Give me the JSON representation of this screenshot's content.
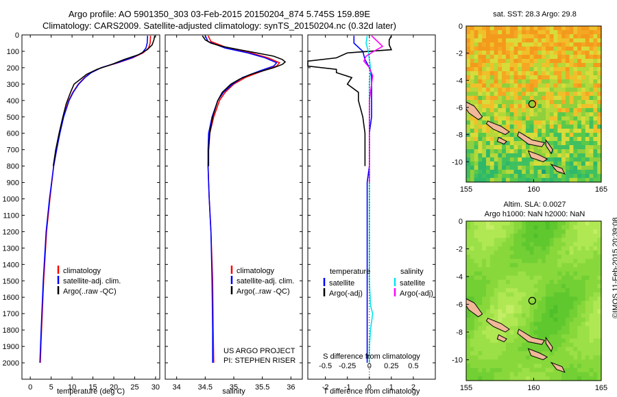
{
  "header": {
    "line1": "Argo profile: AO 5901350_303 03-Feb-2015 20150204_874 5.745S 159.89E",
    "line2": "Climatology: CARS2009. Satellite-adjusted climatology: synTS_20150204.nc (0.32d later)"
  },
  "colors": {
    "climatology": "#ff0000",
    "satellite": "#0000ff",
    "argo": "#000000",
    "satellite_sal": "#00e5ee",
    "argo_sal": "#ff00ff",
    "land": "#f0b898"
  },
  "chart_data": [
    {
      "id": "temperature",
      "type": "line",
      "xlabel": "temperature (deg C)",
      "ylabel": "",
      "xlim": [
        -2,
        31
      ],
      "ylim": [
        2100,
        0
      ],
      "xticks": [
        0,
        5,
        10,
        15,
        20,
        25,
        30
      ],
      "yticks": [
        0,
        100,
        200,
        300,
        400,
        500,
        600,
        700,
        800,
        900,
        1000,
        1100,
        1200,
        1300,
        1400,
        1500,
        1600,
        1700,
        1800,
        1900,
        2000
      ],
      "legend": [
        "climatology",
        "satellite-adj. clim.",
        "Argo(..raw -QC)"
      ],
      "series": [
        {
          "name": "climatology",
          "color": "#ff0000",
          "depth": [
            5,
            50,
            80,
            110,
            140,
            170,
            200,
            230,
            260,
            300,
            350,
            400,
            500,
            600,
            700,
            800,
            1000,
            1200,
            1500,
            1800,
            2000
          ],
          "values": [
            28.8,
            28.7,
            28.3,
            27.0,
            24.5,
            21.0,
            17.0,
            14.5,
            13.0,
            11.5,
            10.2,
            9.2,
            7.9,
            7.0,
            6.3,
            5.6,
            4.7,
            3.9,
            3.2,
            2.7,
            2.4
          ]
        },
        {
          "name": "satellite-adj. clim.",
          "color": "#0000ff",
          "depth": [
            5,
            50,
            80,
            110,
            140,
            170,
            200,
            230,
            260,
            300,
            350,
            400,
            500,
            600,
            700,
            800,
            1000,
            1200,
            1500,
            1800,
            2000
          ],
          "values": [
            28.1,
            28.0,
            27.7,
            26.8,
            24.3,
            20.8,
            17.0,
            14.6,
            13.1,
            11.6,
            10.3,
            9.3,
            8.0,
            7.1,
            6.3,
            5.6,
            4.6,
            3.8,
            3.1,
            2.6,
            2.3
          ]
        },
        {
          "name": "Argo(..raw -QC)",
          "color": "#000000",
          "depth": [
            5,
            30,
            60,
            90,
            120,
            150,
            180,
            210,
            240,
            270,
            300,
            340,
            380,
            420,
            500,
            600,
            700,
            800
          ],
          "values": [
            29.8,
            29.6,
            29.2,
            28.0,
            26.0,
            22.5,
            19.5,
            16.0,
            13.5,
            12.0,
            10.5,
            9.8,
            9.2,
            8.6,
            7.8,
            6.9,
            6.1,
            5.5
          ]
        }
      ]
    },
    {
      "id": "salinity",
      "type": "line",
      "xlabel": "salinity",
      "xlim": [
        33.8,
        36.2
      ],
      "ylim": [
        2100,
        0
      ],
      "xticks": [
        34,
        34.5,
        35,
        35.5,
        36
      ],
      "legend": [
        "climatology",
        "satellite-adj. clim.",
        "Argo(..raw -QC)"
      ],
      "project": [
        "US ARGO PROJECT",
        "PI: STEPHEN RISER"
      ],
      "series": [
        {
          "name": "climatology",
          "color": "#ff0000",
          "depth": [
            5,
            40,
            80,
            110,
            140,
            170,
            190,
            220,
            260,
            300,
            350,
            400,
            500,
            600,
            700,
            800,
            900,
            1000,
            1200,
            1500,
            1800,
            2000
          ],
          "values": [
            34.55,
            34.6,
            34.9,
            35.3,
            35.6,
            35.8,
            35.75,
            35.5,
            35.2,
            35.0,
            34.85,
            34.75,
            34.65,
            34.58,
            34.56,
            34.55,
            34.56,
            34.57,
            34.6,
            34.63,
            34.64,
            34.65
          ]
        },
        {
          "name": "satellite-adj. clim.",
          "color": "#0000ff",
          "depth": [
            5,
            40,
            80,
            110,
            140,
            170,
            190,
            220,
            260,
            300,
            350,
            400,
            500,
            600,
            700,
            800,
            900,
            1000,
            1200,
            1500,
            1800,
            2000
          ],
          "values": [
            34.5,
            34.55,
            34.85,
            35.25,
            35.55,
            35.75,
            35.7,
            35.45,
            35.15,
            34.98,
            34.82,
            34.72,
            34.62,
            34.56,
            34.55,
            34.55,
            34.56,
            34.57,
            34.6,
            34.62,
            34.63,
            34.63
          ]
        },
        {
          "name": "Argo(..raw -QC)",
          "color": "#000000",
          "depth": [
            5,
            30,
            50,
            70,
            90,
            110,
            130,
            150,
            165,
            180,
            200,
            220,
            240,
            270,
            300,
            350,
            400,
            500,
            600,
            700,
            800
          ],
          "values": [
            34.45,
            34.5,
            34.6,
            34.8,
            35.1,
            35.4,
            35.7,
            35.85,
            35.9,
            35.85,
            35.7,
            35.5,
            35.3,
            35.1,
            34.95,
            34.8,
            34.72,
            34.63,
            34.58,
            34.56,
            34.56
          ]
        }
      ]
    },
    {
      "id": "difference",
      "type": "line",
      "xlabel": "T difference from climatology",
      "xlabel2": "S difference from climatology",
      "xlim": [
        -2.8,
        3.0
      ],
      "ylim": [
        2100,
        0
      ],
      "xticks": [
        -2,
        -1,
        0,
        1,
        2
      ],
      "xticks2": [
        -0.5,
        -0.25,
        0,
        0.25,
        0.5
      ],
      "legend_titles": [
        "temperature",
        "salinity"
      ],
      "legend": [
        "satellite",
        "Argo(-adj)",
        "satellite",
        "Argo(-adj)"
      ],
      "series": [
        {
          "name": "temperature satellite",
          "color": "#0000ff",
          "depth": [
            5,
            50,
            100,
            150,
            200,
            250,
            300,
            400,
            500,
            600,
            700,
            800,
            900,
            1000,
            1500,
            2000
          ],
          "values": [
            -0.7,
            -0.7,
            -0.3,
            -0.2,
            0.0,
            0.1,
            0.1,
            0.1,
            0.1,
            0.0,
            0.0,
            0.0,
            -0.1,
            -0.1,
            -0.1,
            -0.1
          ]
        },
        {
          "name": "temperature Argo(-adj)",
          "color": "#000000",
          "depth": [
            5,
            30,
            60,
            90,
            110,
            140,
            160,
            190,
            210,
            230,
            260,
            300,
            350,
            400,
            500,
            600,
            700,
            800
          ],
          "values": [
            1.0,
            0.9,
            0.9,
            1.0,
            -1.0,
            -1.5,
            -2.8,
            -2.8,
            -1.5,
            -1.5,
            -0.8,
            -1.0,
            -0.5,
            -0.5,
            -0.3,
            -0.2,
            -0.2,
            -0.2
          ]
        },
        {
          "name": "salinity satellite",
          "color": "#00e5ee",
          "depth": [
            5,
            50,
            100,
            150,
            200,
            300,
            400,
            500,
            600,
            800,
            1000,
            1500,
            1650,
            1700,
            1800,
            1900,
            2000
          ],
          "values": [
            -0.1,
            -0.15,
            -0.05,
            0.0,
            0.05,
            0.0,
            0.0,
            0.0,
            0.0,
            0.0,
            0.0,
            0.0,
            0.05,
            0.15,
            0.05,
            0.0,
            0.0
          ]
        },
        {
          "name": "salinity Argo(-adj)",
          "color": "#ff00ff",
          "depth": [
            5,
            50,
            70,
            100,
            130,
            160,
            200,
            250,
            300,
            400,
            500,
            600,
            700,
            800,
            900
          ],
          "values": [
            0.1,
            0.45,
            0.6,
            0.2,
            -0.15,
            -0.25,
            0.0,
            0.15,
            0.1,
            0.0,
            0.0,
            0.0,
            0.0,
            0.0,
            0.0
          ]
        }
      ]
    },
    {
      "id": "sst_map",
      "type": "heatmap",
      "title": "sat. SST: 28.3 Argo: 29.8",
      "xlim": [
        155,
        165
      ],
      "ylim": [
        -11.5,
        0
      ],
      "xticks": [
        155,
        160,
        165
      ],
      "yticks": [
        0,
        -2,
        -4,
        -6,
        -8,
        -10
      ],
      "marker": [
        159.89,
        -5.745
      ]
    },
    {
      "id": "sla_map",
      "type": "heatmap",
      "title": "Altim. SLA: 0.0027",
      "subtitle": "Argo h1000: NaN h2000: NaN",
      "xlim": [
        155,
        165
      ],
      "ylim": [
        -11.5,
        0
      ],
      "xticks": [
        155,
        160,
        165
      ],
      "yticks": [
        0,
        -2,
        -4,
        -6,
        -8,
        -10
      ],
      "marker": [
        159.89,
        -5.745
      ]
    }
  ],
  "credit": "©IMOS 11-Feb-2015 20:39:08"
}
